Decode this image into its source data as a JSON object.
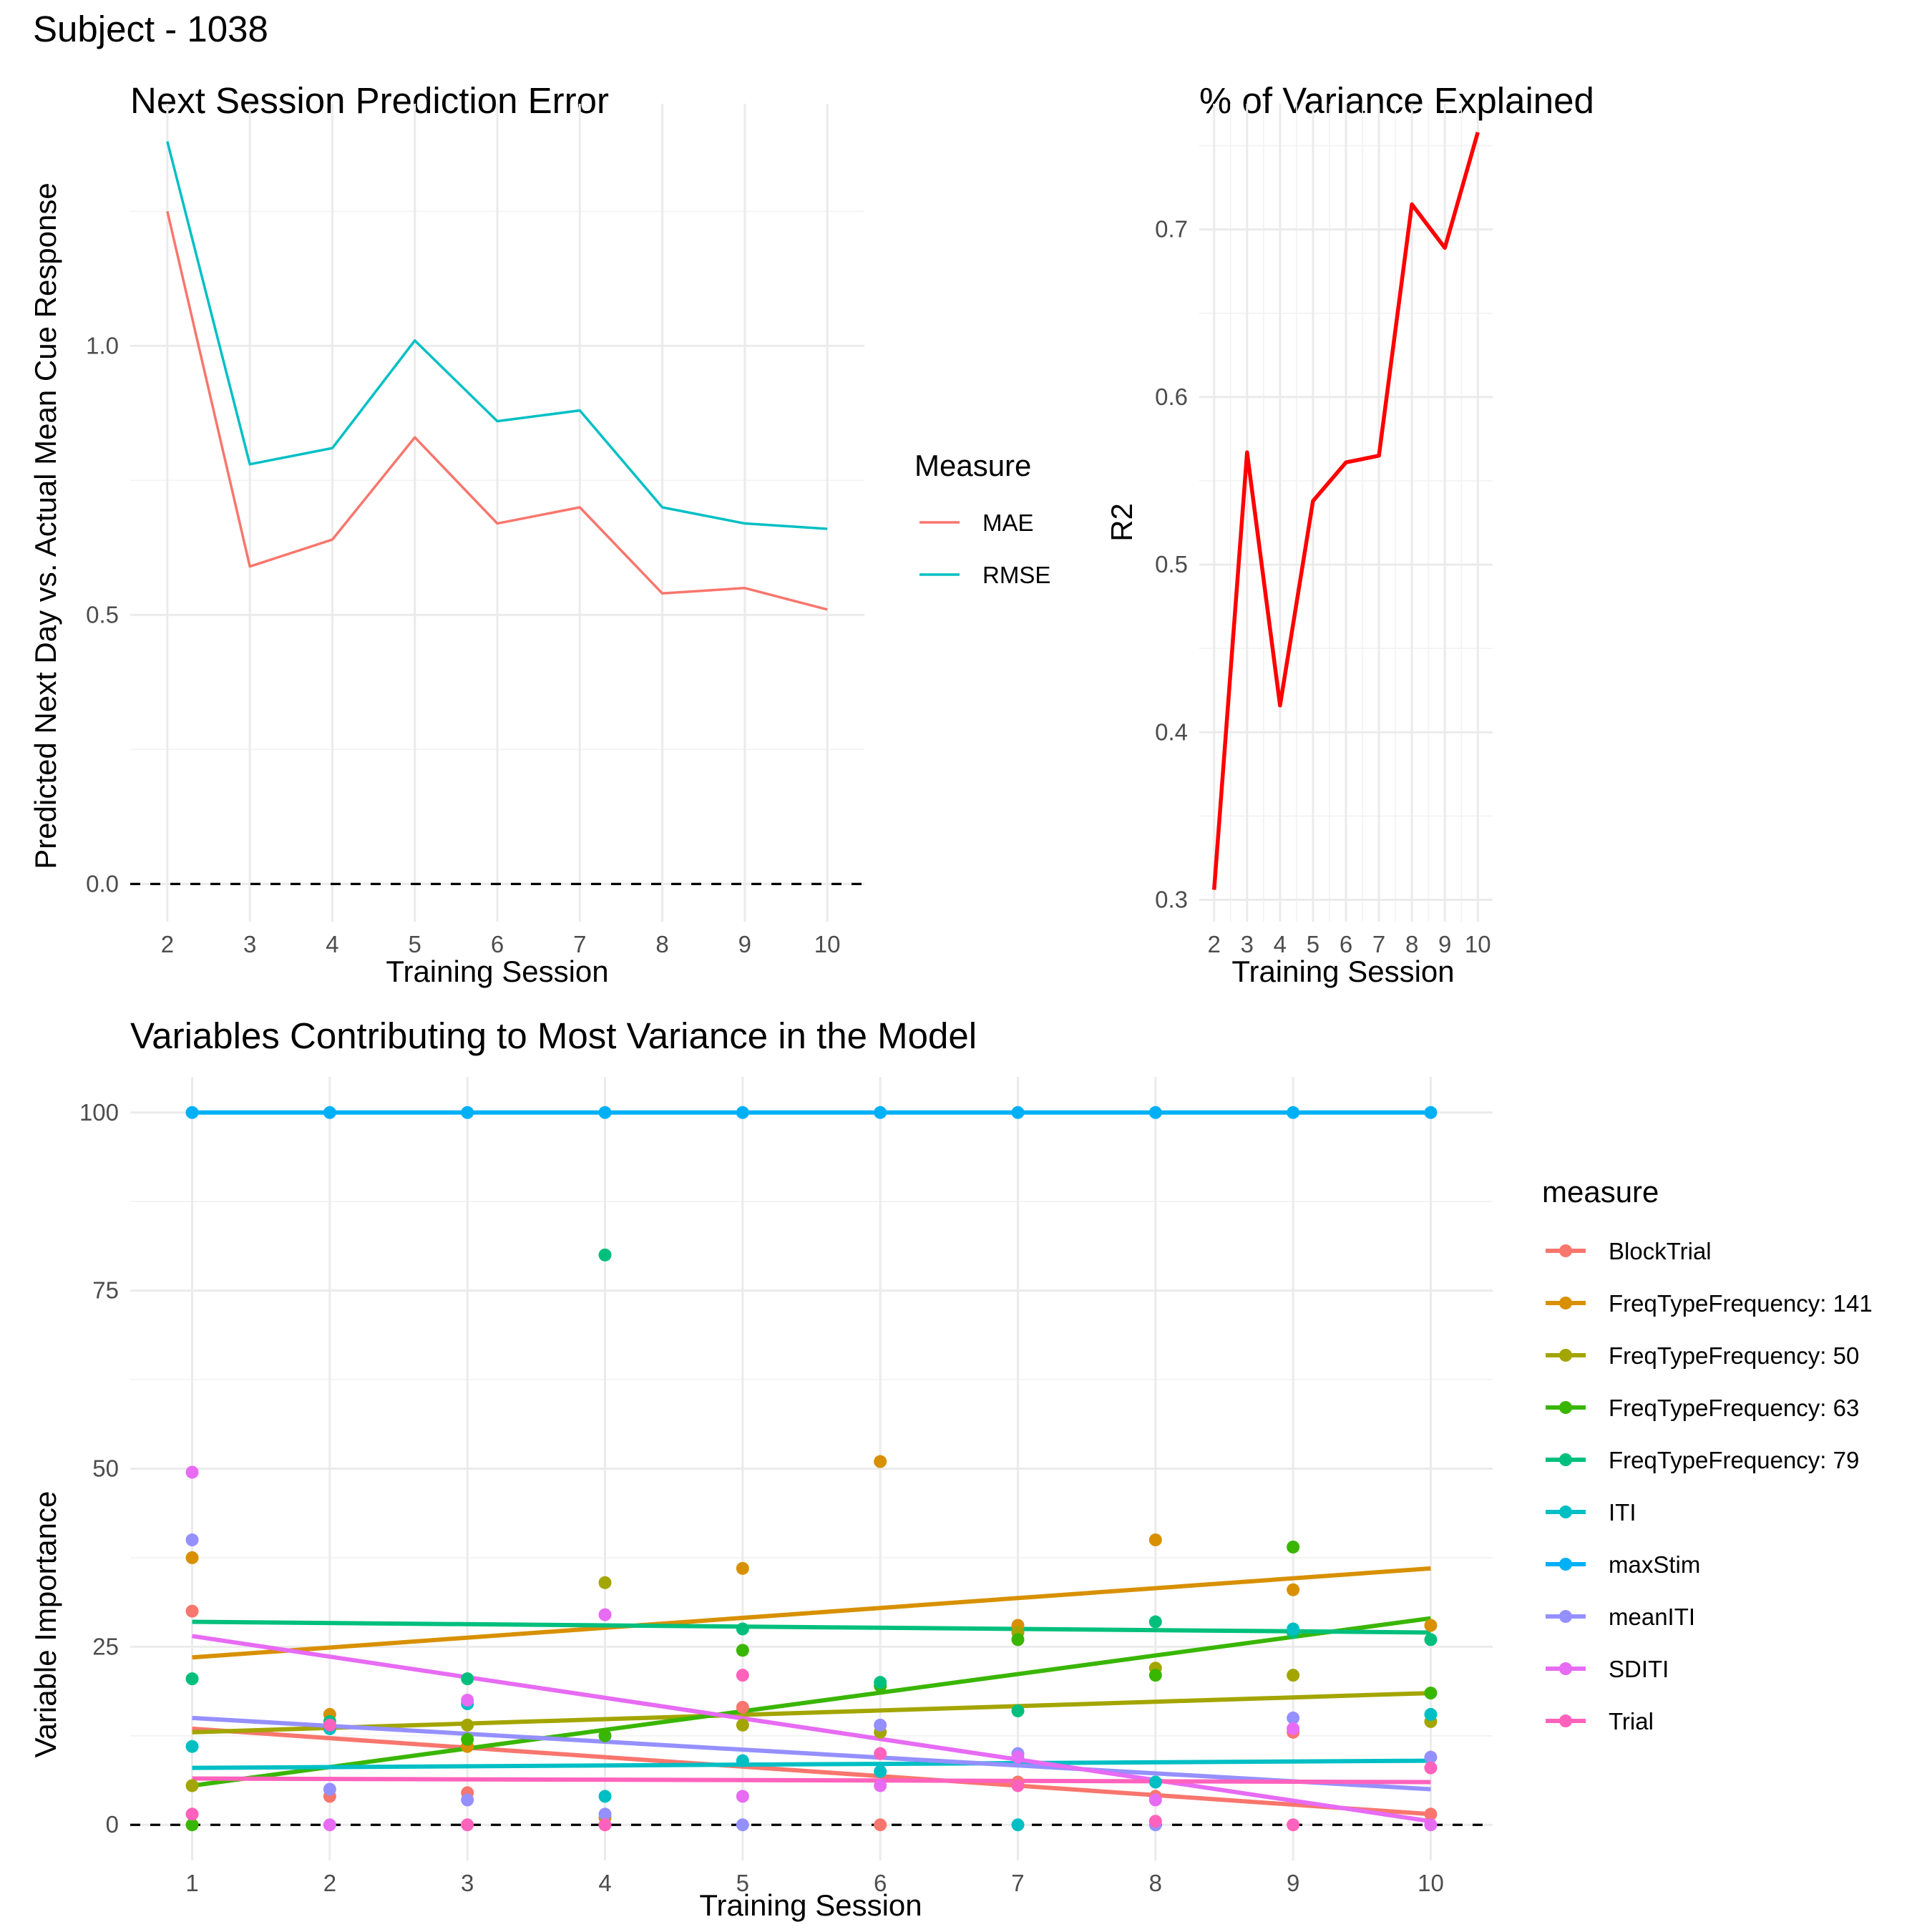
{
  "page_title": "Subject - 1038",
  "chart_data": [
    {
      "type": "line",
      "title": "Next Session Prediction Error",
      "xlabel": "Training Session",
      "ylabel": "Predicted Next Day vs. Actual Mean Cue Response",
      "x": [
        2,
        3,
        4,
        5,
        6,
        7,
        8,
        9,
        10
      ],
      "xlim": [
        1.55,
        10.45
      ],
      "ylim": [
        -0.07,
        1.45
      ],
      "yticks": [
        0.0,
        0.5,
        1.0
      ],
      "ytick_labels": [
        "0.0",
        "0.5",
        "1.0"
      ],
      "reference_line": {
        "y": 0,
        "style": "dashed"
      },
      "legend_title": "Measure",
      "legend_position": "right",
      "grid": true,
      "series": [
        {
          "name": "MAE",
          "color": "#F8766D",
          "values": [
            1.25,
            0.59,
            0.64,
            0.83,
            0.67,
            0.7,
            0.54,
            0.55,
            0.51
          ]
        },
        {
          "name": "RMSE",
          "color": "#00BFC4",
          "values": [
            1.38,
            0.78,
            0.81,
            1.01,
            0.86,
            0.88,
            0.7,
            0.67,
            0.66
          ]
        }
      ]
    },
    {
      "type": "line",
      "title": "% of Variance Explained",
      "xlabel": "Training Session",
      "ylabel": "R2",
      "x": [
        2,
        3,
        4,
        5,
        6,
        7,
        8,
        9,
        10
      ],
      "xlim": [
        1.55,
        10.45
      ],
      "ylim": [
        0.287,
        0.775
      ],
      "yticks": [
        0.3,
        0.4,
        0.5,
        0.6,
        0.7
      ],
      "ytick_labels": [
        "0.3",
        "0.4",
        "0.5",
        "0.6",
        "0.7"
      ],
      "grid": true,
      "series": [
        {
          "name": "",
          "color": "#FF0000",
          "values": [
            0.306,
            0.567,
            0.416,
            0.538,
            0.561,
            0.565,
            0.715,
            0.689,
            0.758
          ]
        }
      ]
    },
    {
      "type": "scatter",
      "title": "Variables Contributing to Most Variance in the Model",
      "xlabel": "Training Session",
      "ylabel": "Variable Importance",
      "x": [
        1,
        2,
        3,
        4,
        5,
        6,
        7,
        8,
        9,
        10
      ],
      "xlim": [
        0.55,
        10.45
      ],
      "ylim": [
        -5,
        105
      ],
      "yticks": [
        0,
        25,
        50,
        75,
        100
      ],
      "ytick_labels": [
        "0",
        "25",
        "50",
        "75",
        "100"
      ],
      "reference_line": {
        "y": 0,
        "style": "dashed"
      },
      "legend_title": "measure",
      "legend_position": "right",
      "trend": "linear fit per series",
      "grid": true,
      "series": [
        {
          "name": "BlockTrial",
          "color": "#F8766D",
          "values": [
            30,
            4,
            4.5,
            0,
            16.5,
            0,
            6,
            4,
            13,
            1.5
          ],
          "fit": [
            13.5,
            1.5
          ]
        },
        {
          "name": "FreqTypeFrequency: 141",
          "color": "#D89000",
          "values": [
            37.5,
            15.5,
            11,
            1,
            36,
            51,
            28,
            40,
            33,
            28
          ],
          "fit": [
            23.5,
            36
          ]
        },
        {
          "name": "FreqTypeFrequency: 50",
          "color": "#A3A500",
          "values": [
            5.5,
            13.5,
            14,
            34,
            14,
            13,
            27,
            22,
            21,
            14.5
          ],
          "fit": [
            13,
            18.5
          ]
        },
        {
          "name": "FreqTypeFrequency: 63",
          "color": "#39B600",
          "values": [
            0,
            14,
            12,
            12.5,
            24.5,
            19.5,
            26,
            21,
            39,
            18.5
          ],
          "fit": [
            5.5,
            29
          ]
        },
        {
          "name": "FreqTypeFrequency: 79",
          "color": "#00BF7D",
          "values": [
            20.5,
            14.5,
            20.5,
            80,
            27.5,
            20,
            16,
            28.5,
            27,
            26
          ],
          "fit": [
            28.5,
            27
          ]
        },
        {
          "name": "ITI",
          "color": "#00BFC4",
          "values": [
            11,
            13.5,
            17,
            4,
            9,
            7.5,
            0,
            6,
            27.5,
            15.5
          ],
          "fit": [
            8,
            9
          ]
        },
        {
          "name": "maxStim",
          "color": "#00B0F6",
          "values": [
            100,
            100,
            100,
            100,
            100,
            100,
            100,
            100,
            100,
            100
          ],
          "fit": [
            100,
            100
          ]
        },
        {
          "name": "meanITI",
          "color": "#9590FF",
          "values": [
            40,
            5,
            3.5,
            1.5,
            0,
            14,
            10,
            0,
            15,
            9.5
          ],
          "fit": [
            15,
            5
          ]
        },
        {
          "name": "SDITI",
          "color": "#E76BF3",
          "values": [
            49.5,
            0,
            17.5,
            29.5,
            4,
            5.5,
            9.5,
            3.5,
            13.5,
            0
          ],
          "fit": [
            26.5,
            0.5
          ]
        },
        {
          "name": "Trial",
          "color": "#FF62BC",
          "values": [
            1.5,
            14,
            0,
            0,
            21,
            10,
            5.5,
            0.5,
            0,
            8
          ],
          "fit": [
            6.5,
            6
          ]
        }
      ]
    }
  ]
}
